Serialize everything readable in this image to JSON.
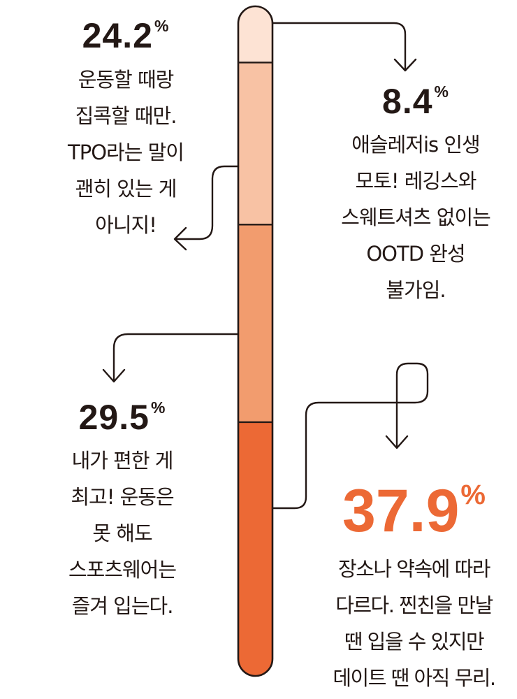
{
  "chart_data": {
    "type": "stacked-bar",
    "title": "",
    "unit": "%",
    "segments": [
      {
        "value": 8.4,
        "value_label": "8.4",
        "color": "#fde3d4",
        "description": [
          "애슬레저is 인생",
          "모토! 레깅스와",
          "스웨트셔츠 없이는",
          "OOTD 완성",
          "불가임."
        ]
      },
      {
        "value": 24.2,
        "value_label": "24.2",
        "color": "#f8c2a4",
        "description": [
          "운동할 때랑",
          "집콕할 때만.",
          "TPO라는 말이",
          "괜히 있는 게",
          "아니지!"
        ]
      },
      {
        "value": 29.5,
        "value_label": "29.5",
        "color": "#f29c6e",
        "description": [
          "내가 편한 게",
          "최고! 운동은",
          "못 해도",
          "스포츠웨어는",
          "즐겨 입는다."
        ]
      },
      {
        "value": 37.9,
        "value_label": "37.9",
        "color": "#ec6935",
        "description": [
          "장소나 약속에 따라",
          "다르다. 찐친을 만날",
          "땐 입을 수 있지만",
          "데이트 땐 아직 무리."
        ]
      }
    ],
    "colors": {
      "text": "#231815",
      "highlight": "#ec6935",
      "outline": "#231815"
    }
  }
}
